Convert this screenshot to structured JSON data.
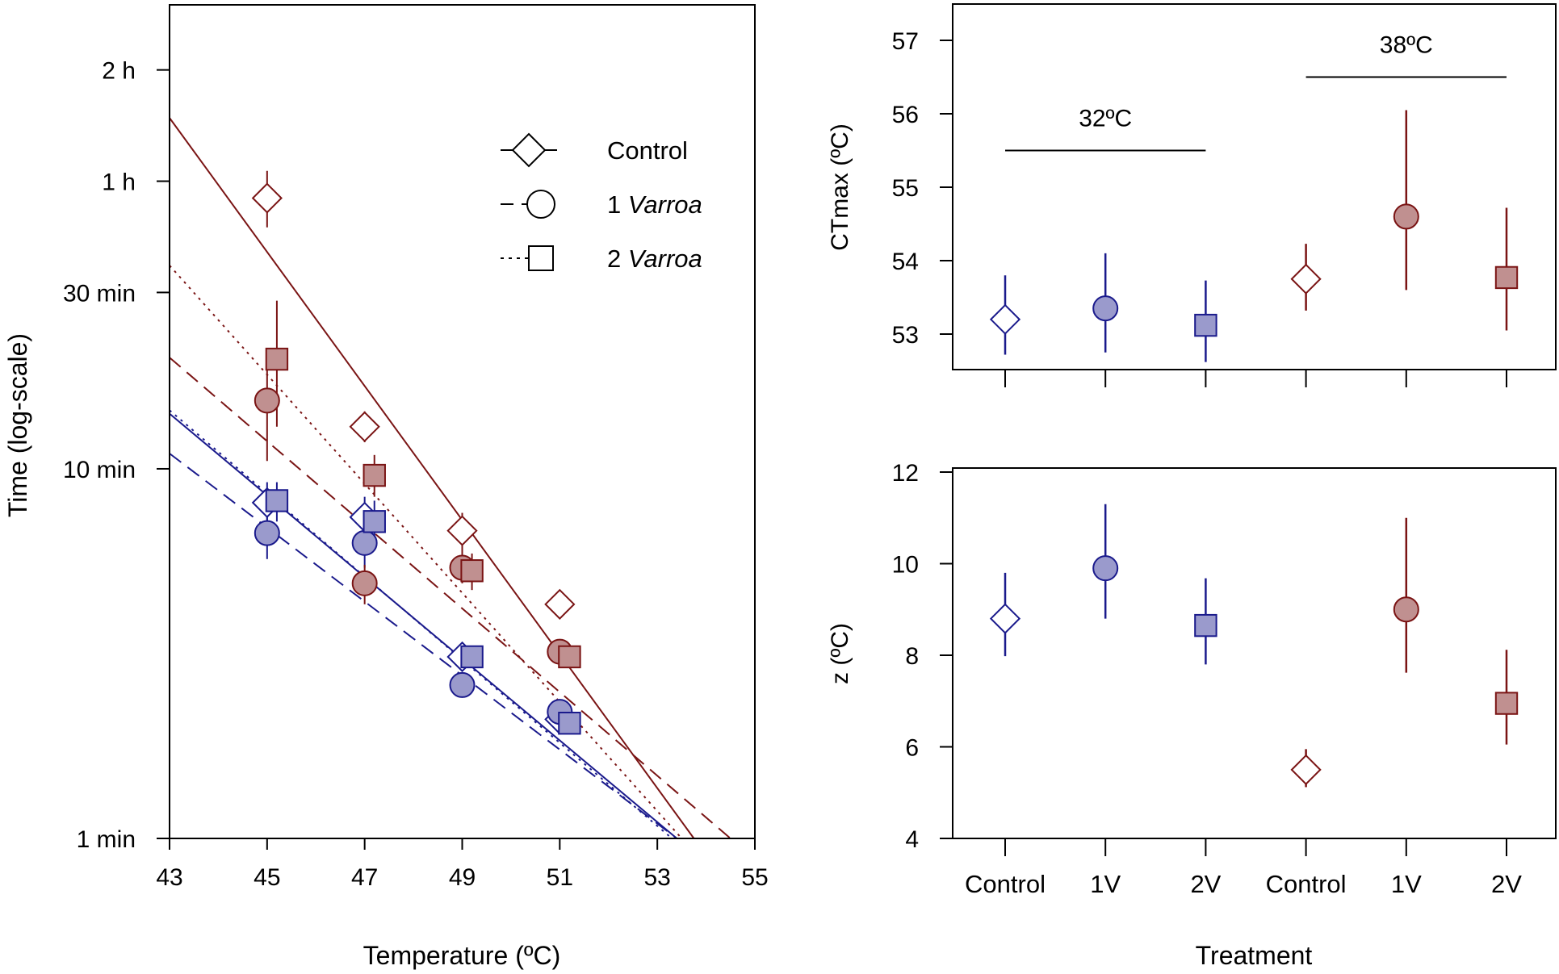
{
  "colors": {
    "blue": "#1a1a8c",
    "blue_fill": "#9a9acc",
    "red": "#7a1414",
    "red_fill": "#c09090",
    "axis": "#000000"
  },
  "chart_data": [
    {
      "id": "left",
      "type": "scatter",
      "scale": "log-y",
      "xlabel": "Temperature (ºC)",
      "ylabel": "Time (log-scale)",
      "xlim": [
        43,
        55
      ],
      "ylim_minutes": [
        1,
        180
      ],
      "x_ticks": [
        43,
        45,
        47,
        49,
        51,
        53,
        55
      ],
      "y_ticks": [
        {
          "value": 1,
          "label": "1 min"
        },
        {
          "value": 10,
          "label": "10 min"
        },
        {
          "value": 30,
          "label": "30 min"
        },
        {
          "value": 60,
          "label": "1 h"
        },
        {
          "value": 120,
          "label": "2 h"
        }
      ],
      "legend": {
        "position": "top-right",
        "items": [
          {
            "label_plain": "Control",
            "label_italic": "",
            "marker": "diamond",
            "dash": "solid"
          },
          {
            "label_plain": "1 ",
            "label_italic": "Varroa",
            "marker": "circle",
            "dash": "dashed"
          },
          {
            "label_plain": "2 ",
            "label_italic": "Varroa",
            "marker": "square",
            "dash": "dotted"
          }
        ]
      },
      "series": [
        {
          "name": "Control 32ºC",
          "color": "blue",
          "marker": "diamond",
          "filled": false,
          "dash": "solid",
          "points": [
            {
              "x": 45,
              "y": 8.1,
              "lo": 7.0,
              "hi": 9.2
            },
            {
              "x": 47,
              "y": 7.4,
              "lo": 6.4,
              "hi": 8.4
            },
            {
              "x": 49,
              "y": 3.1
            },
            {
              "x": 51,
              "y": 2.1
            }
          ],
          "line": {
            "x0": 43,
            "y0": 14.1,
            "x1": 53.4,
            "y1": 1.0
          }
        },
        {
          "name": "1 Varroa 32ºC",
          "color": "blue",
          "marker": "circle",
          "filled": true,
          "dash": "dashed",
          "points": [
            {
              "x": 45,
              "y": 6.7,
              "lo": 5.7,
              "hi": 7.8
            },
            {
              "x": 47,
              "y": 6.3,
              "lo": 5.4,
              "hi": 7.2
            },
            {
              "x": 49,
              "y": 2.6
            },
            {
              "x": 51,
              "y": 2.2
            }
          ],
          "line": {
            "x0": 43,
            "y0": 11.0,
            "x1": 53.4,
            "y1": 1.0
          }
        },
        {
          "name": "2 Varroa 32ºC",
          "color": "blue",
          "marker": "square",
          "filled": true,
          "dash": "dotted",
          "points": [
            {
              "x": 45.2,
              "y": 8.2,
              "lo": 7.2,
              "hi": 9.2
            },
            {
              "x": 47.2,
              "y": 7.2,
              "lo": 6.3,
              "hi": 8.2
            },
            {
              "x": 49.2,
              "y": 3.1
            },
            {
              "x": 51.2,
              "y": 2.05
            }
          ],
          "line": {
            "x0": 43,
            "y0": 14.4,
            "x1": 53.3,
            "y1": 1.0
          }
        },
        {
          "name": "Control 38ºC",
          "color": "red",
          "marker": "diamond",
          "filled": false,
          "dash": "solid",
          "points": [
            {
              "x": 45,
              "y": 54,
              "lo": 45,
              "hi": 64
            },
            {
              "x": 47,
              "y": 13,
              "lo": 11.8,
              "hi": 14.3
            },
            {
              "x": 49,
              "y": 6.8,
              "lo": 5.7,
              "hi": 7.6
            },
            {
              "x": 51,
              "y": 4.3,
              "lo": 4.0,
              "hi": 4.6
            }
          ],
          "line": {
            "x0": 43,
            "y0": 89,
            "x1": 53.75,
            "y1": 1.0
          }
        },
        {
          "name": "1 Varroa 38ºC",
          "color": "red",
          "marker": "circle",
          "filled": true,
          "dash": "dashed",
          "points": [
            {
              "x": 45,
              "y": 15.3,
              "lo": 10.5,
              "hi": 21
            },
            {
              "x": 47,
              "y": 4.9,
              "lo": 4.3,
              "hi": 5.5
            },
            {
              "x": 49,
              "y": 5.4,
              "lo": 4.9,
              "hi": 6.0
            },
            {
              "x": 51,
              "y": 3.2
            }
          ],
          "line": {
            "x0": 43,
            "y0": 20.0,
            "x1": 54.5,
            "y1": 1.0
          }
        },
        {
          "name": "2 Varroa 38ºC",
          "color": "red",
          "marker": "square",
          "filled": true,
          "dash": "dotted",
          "points": [
            {
              "x": 45.2,
              "y": 19.8,
              "lo": 13,
              "hi": 28.5
            },
            {
              "x": 47.2,
              "y": 9.6,
              "lo": 8.4,
              "hi": 10.9
            },
            {
              "x": 49.2,
              "y": 5.3,
              "lo": 4.7,
              "hi": 5.9
            },
            {
              "x": 51.2,
              "y": 3.1
            }
          ],
          "line": {
            "x0": 43,
            "y0": 35.5,
            "x1": 53.5,
            "y1": 1.0
          }
        }
      ]
    },
    {
      "id": "top-right",
      "type": "scatter",
      "ylabel": "CTmax (ºC)",
      "ylim": [
        52.5,
        57.5
      ],
      "y_ticks": [
        53,
        54,
        55,
        56,
        57
      ],
      "categories": [
        "Control",
        "1V",
        "2V",
        "Control",
        "1V",
        "2V"
      ],
      "groups": [
        {
          "label": "32ºC",
          "level": 55.5,
          "from": 0,
          "to": 2
        },
        {
          "label": "38ºC",
          "level": 56.5,
          "from": 3,
          "to": 5
        }
      ],
      "points": [
        {
          "cat": 0,
          "y": 53.2,
          "lo": 52.72,
          "hi": 53.8,
          "marker": "diamond",
          "color": "blue",
          "filled": false
        },
        {
          "cat": 1,
          "y": 53.35,
          "lo": 52.75,
          "hi": 54.1,
          "marker": "circle",
          "color": "blue",
          "filled": true
        },
        {
          "cat": 2,
          "y": 53.12,
          "lo": 52.62,
          "hi": 53.73,
          "marker": "square",
          "color": "blue",
          "filled": true
        },
        {
          "cat": 3,
          "y": 53.75,
          "lo": 53.32,
          "hi": 54.23,
          "marker": "diamond",
          "color": "red",
          "filled": false
        },
        {
          "cat": 4,
          "y": 54.6,
          "lo": 53.6,
          "hi": 56.05,
          "marker": "circle",
          "color": "red",
          "filled": true
        },
        {
          "cat": 5,
          "y": 53.77,
          "lo": 53.05,
          "hi": 54.72,
          "marker": "square",
          "color": "red",
          "filled": true
        }
      ]
    },
    {
      "id": "bottom-right",
      "type": "scatter",
      "xlabel": "Treatment",
      "ylabel": "z (ºC)",
      "ylim": [
        4,
        12
      ],
      "y_ticks": [
        4,
        6,
        8,
        10,
        12
      ],
      "categories": [
        "Control",
        "1V",
        "2V",
        "Control",
        "1V",
        "2V"
      ],
      "points": [
        {
          "cat": 0,
          "y": 8.8,
          "lo": 7.98,
          "hi": 9.8,
          "marker": "diamond",
          "color": "blue",
          "filled": false
        },
        {
          "cat": 1,
          "y": 9.9,
          "lo": 8.8,
          "hi": 11.3,
          "marker": "circle",
          "color": "blue",
          "filled": true
        },
        {
          "cat": 2,
          "y": 8.65,
          "lo": 7.8,
          "hi": 9.68,
          "marker": "square",
          "color": "blue",
          "filled": true
        },
        {
          "cat": 3,
          "y": 5.5,
          "lo": 5.12,
          "hi": 5.95,
          "marker": "diamond",
          "color": "red",
          "filled": false
        },
        {
          "cat": 4,
          "y": 9.0,
          "lo": 7.62,
          "hi": 11.0,
          "marker": "circle",
          "color": "red",
          "filled": true
        },
        {
          "cat": 5,
          "y": 6.95,
          "lo": 6.05,
          "hi": 8.12,
          "marker": "square",
          "color": "red",
          "filled": true
        }
      ]
    }
  ]
}
